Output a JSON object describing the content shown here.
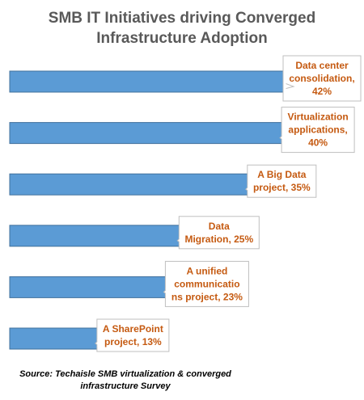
{
  "chart_data": {
    "type": "bar",
    "orientation": "horizontal",
    "title": [
      "SMB IT Initiatives driving Converged",
      "Infrastructure Adoption"
    ],
    "categories": [
      "Data center consolidation",
      "Virtualization applications",
      "A Big Data project",
      "Data Migration",
      "A unified communications project",
      "A SharePoint project"
    ],
    "values": [
      42,
      40,
      35,
      25,
      23,
      13
    ],
    "unit": "%",
    "data_labels": [
      [
        "Data center",
        "consolidation,",
        "42%"
      ],
      [
        "Virtualization",
        "applications,",
        "40%"
      ],
      [
        "A Big Data",
        "project, 35%"
      ],
      [
        "Data",
        "Migration, 25%"
      ],
      [
        "A unified",
        "communicatio",
        "ns project, 23%"
      ],
      [
        "A SharePoint",
        "project, 13%"
      ]
    ],
    "bar_color": "#5b9bd5",
    "bar_border_color": "#41719c",
    "label_color": "#c55a11",
    "label_border_color": "#bfbfbf",
    "grid": false,
    "legend": "none",
    "xlim": [
      0,
      42
    ]
  },
  "source": [
    "Source: Techaisle SMB  virtualization & converged",
    "infrastructure Survey"
  ]
}
